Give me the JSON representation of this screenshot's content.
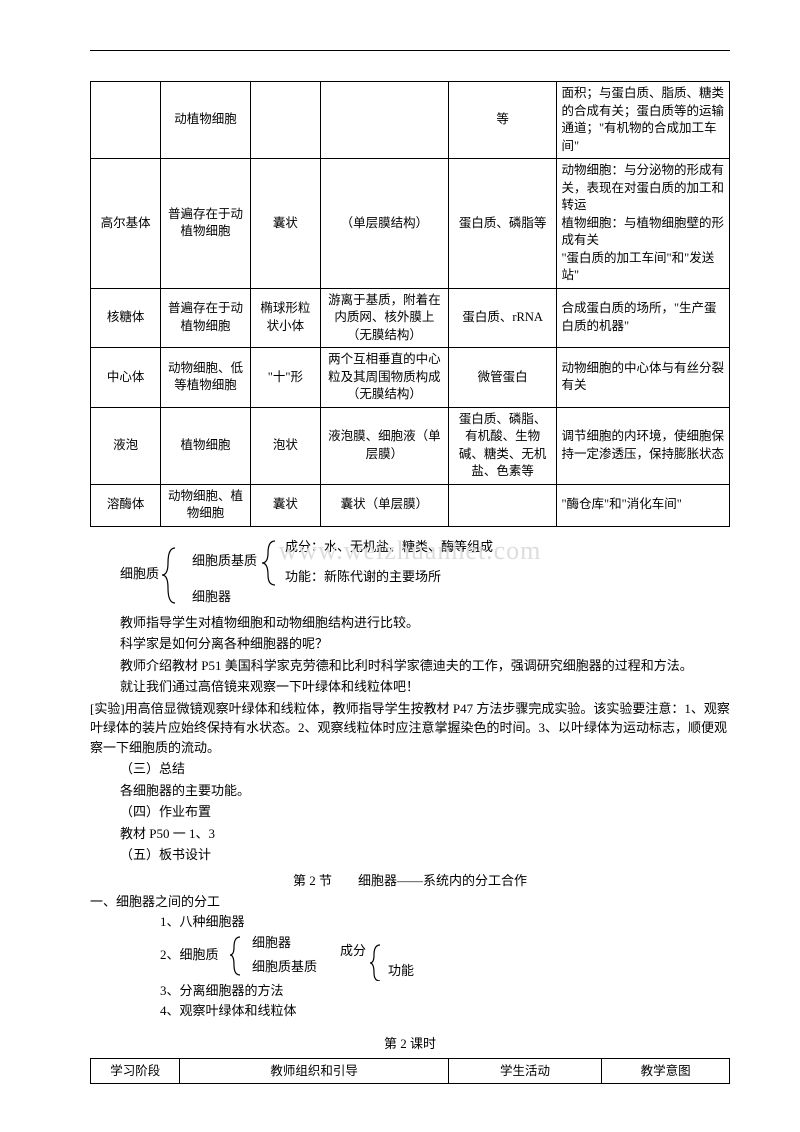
{
  "table1": {
    "rows": [
      {
        "c0": "",
        "c1": "动植物细胞",
        "c2": "",
        "c3": "",
        "c4": "等",
        "c5": "面积；与蛋白质、脂质、糖类的合成有关；蛋白质等的运输通道；\"有机物的合成加工车间\""
      },
      {
        "c0": "高尔基体",
        "c1": "普遍存在于动植物细胞",
        "c2": "囊状",
        "c3": "（单层膜结构）",
        "c4": "蛋白质、磷脂等",
        "c5": "动物细胞：与分泌物的形成有关，表现在对蛋白质的加工和转运\n植物细胞：与植物细胞壁的形成有关\n\"蛋白质的加工车间\"和\"发送站\""
      },
      {
        "c0": "核糖体",
        "c1": "普遍存在于动植物细胞",
        "c2": "椭球形粒状小体",
        "c3": "游离于基质，附着在内质网、核外膜上（无膜结构）",
        "c4": "蛋白质、rRNA",
        "c5": "合成蛋白质的场所，\"生产蛋白质的机器\""
      },
      {
        "c0": "中心体",
        "c1": "动物细胞、低等植物细胞",
        "c2": "\"十\"形",
        "c3": "两个互相垂直的中心粒及其周围物质构成（无膜结构）",
        "c4": "微管蛋白",
        "c5": "动物细胞的中心体与有丝分裂有关"
      },
      {
        "c0": "液泡",
        "c1": "植物细胞",
        "c2": "泡状",
        "c3": "液泡膜、细胞液（单层膜）",
        "c4": "蛋白质、磷脂、有机酸、生物碱、糖类、无机盐、色素等",
        "c5": "调节细胞的内环境，使细胞保持一定渗透压，保持膨胀状态"
      },
      {
        "c0": "溶酶体",
        "c1": "动物细胞、植物细胞",
        "c2": "囊状",
        "c3": "囊状（单层膜）",
        "c4": "",
        "c5": "\"酶仓库\"和\"消化车间\""
      }
    ],
    "col_widths": [
      "11%",
      "14%",
      "11%",
      "20%",
      "17%",
      "27%"
    ]
  },
  "watermark": "www.weizhuanhet.com",
  "tree1": {
    "root": "细胞质",
    "b1a": "细胞质基质",
    "b1b": "细胞器",
    "leaf1": "成分：水、无机盐、糖类、酶等组成",
    "leaf2": "功能：新陈代谢的主要场所"
  },
  "paras": [
    "教师指导学生对植物细胞和动物细胞结构进行比较。",
    "科学家是如何分离各种细胞器的呢？",
    "教师介绍教材 P51 美国科学家克劳德和比利时科学家德迪夫的工作，强调研究细胞器的过程和方法。",
    "就让我们通过高倍镜来观察一下叶绿体和线粒体吧！"
  ],
  "exp": "[实验]用高倍显微镜观察叶绿体和线粒体，教师指导学生按教材 P47 方法步骤完成实验。该实验要注意：1、观察叶绿体的装片应始终保持有水状态。2、观察线粒体时应注意掌握染色的时间。3、以叶绿体为运动标志，顺便观察一下细胞质的流动。",
  "s3": "（三）总结",
  "s3a": "各细胞器的主要功能。",
  "s4": "（四）作业布置",
  "s4a": "教材 P50 一  1、3",
  "s5": "（五）板书设计",
  "title2": "第 2 节　　细胞器——系统内的分工合作",
  "outline": {
    "h1": "一、细胞器之间的分工",
    "l1": "1、八种细胞器",
    "l2": "2、细胞质",
    "l2a": "细胞器",
    "l2b": "细胞质基质",
    "l2c": "成分",
    "l2d": "功能",
    "l3": "3、分离细胞器的方法",
    "l4": "4、观察叶绿体和线粒体"
  },
  "lesson_title": "第 2 课时",
  "lesson_headers": [
    "学习阶段",
    "教师组织和引导",
    "学生活动",
    "教学意图"
  ],
  "lesson_col_widths": [
    "14%",
    "42%",
    "24%",
    "20%"
  ]
}
